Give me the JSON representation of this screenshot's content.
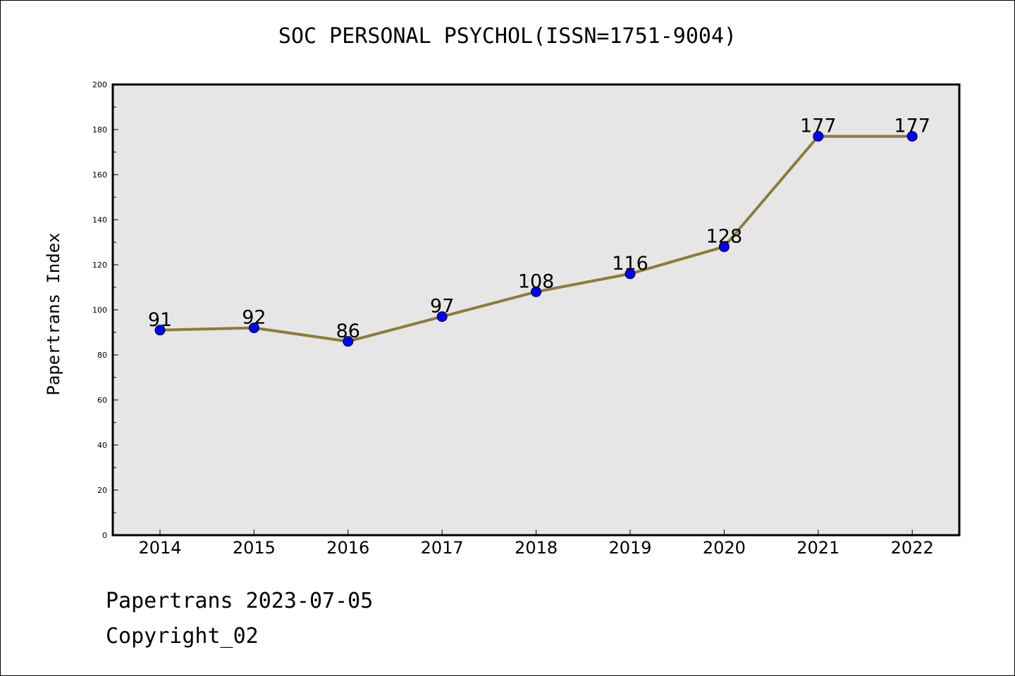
{
  "chart_data": {
    "type": "line",
    "title": "SOC PERSONAL PSYCHOL(ISSN=1751-9004)",
    "xlabel": "",
    "ylabel": "Papertrans Index",
    "categories": [
      "2014",
      "2015",
      "2016",
      "2017",
      "2018",
      "2019",
      "2020",
      "2021",
      "2022"
    ],
    "values": [
      91,
      92,
      86,
      97,
      108,
      116,
      128,
      177,
      177
    ],
    "ylim": [
      0,
      200
    ],
    "yticks": [
      0,
      20,
      40,
      60,
      80,
      100,
      120,
      140,
      160,
      180,
      200
    ],
    "grid": false,
    "line_color": "#8b7d3a",
    "marker_color": "#0000ff",
    "plot_background": "#e6e6e6"
  },
  "footer": {
    "line1": "Papertrans 2023-07-05",
    "line2": "Copyright_02"
  }
}
